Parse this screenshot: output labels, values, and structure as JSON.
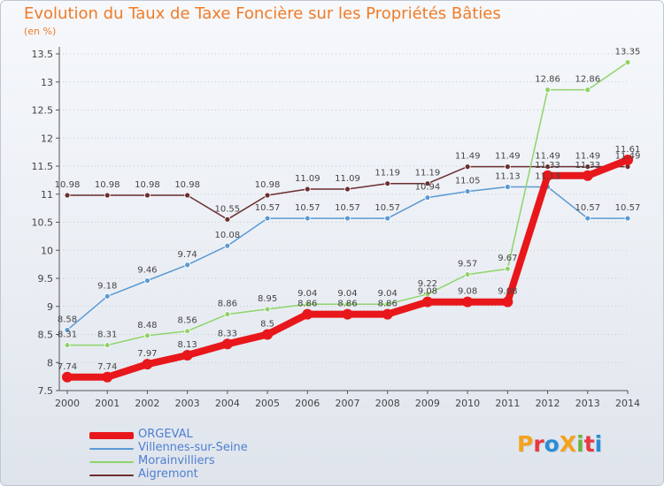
{
  "title": "Evolution du Taux de Taxe Foncière sur les Propriétés Bâties",
  "subtitle": "(en %)",
  "logo": {
    "text": "ProXiti",
    "letters": [
      "P",
      "r",
      "o",
      "X",
      "i",
      "t",
      "i"
    ],
    "colors": [
      "#f4a21f",
      "#e9383f",
      "#2a8ed6",
      "#f4a21f",
      "#6cb33f",
      "#e9383f",
      "#2a8ed6"
    ]
  },
  "chart_data": {
    "type": "line",
    "categories": [
      "2000",
      "2001",
      "2002",
      "2003",
      "2004",
      "2005",
      "2006",
      "2007",
      "2008",
      "2009",
      "2010",
      "2011",
      "2012",
      "2013",
      "2014"
    ],
    "ylim": [
      7.5,
      13.5
    ],
    "yticks": [
      "7.5",
      "8",
      "8.5",
      "9",
      "9.5",
      "10",
      "10.5",
      "11",
      "11.5",
      "12",
      "12.5",
      "13",
      "13.5"
    ],
    "xlabel": "",
    "ylabel": "",
    "grid": "horizontal-dotted",
    "legend_position": "bottom-left",
    "series": [
      {
        "name": "Aigremont",
        "color": "#6b2e2e",
        "width": 1.5,
        "values": [
          10.98,
          10.98,
          10.98,
          10.98,
          10.55,
          10.98,
          11.09,
          11.09,
          11.19,
          11.19,
          11.49,
          11.49,
          11.49,
          11.49,
          11.49
        ],
        "labels": [
          "10.98",
          "10.98",
          "10.98",
          "10.98",
          "10.55",
          "10.98",
          "11.09",
          "11.09",
          "11.19",
          "11.19",
          "11.49",
          "11.49",
          "11.49",
          "11.49",
          "11.49"
        ]
      },
      {
        "name": "Villennes-sur-Seine",
        "color": "#5a9ad4",
        "width": 1.5,
        "values": [
          8.58,
          9.18,
          9.46,
          9.74,
          10.08,
          10.57,
          10.57,
          10.57,
          10.57,
          10.94,
          11.05,
          11.13,
          11.13,
          10.57,
          10.57
        ],
        "labels": [
          "8.58",
          "9.18",
          "9.46",
          "9.74",
          "10.08",
          "10.57",
          "10.57",
          "10.57",
          "10.57",
          "10.94",
          "11.05",
          "11.13",
          "11.13",
          "10.57",
          "10.57"
        ]
      },
      {
        "name": "Morainvilliers",
        "color": "#8fd46a",
        "width": 1.5,
        "values": [
          8.31,
          8.31,
          8.48,
          8.56,
          8.86,
          8.95,
          9.04,
          9.04,
          9.04,
          9.22,
          9.57,
          9.67,
          12.86,
          12.86,
          13.35
        ],
        "labels": [
          "8.31",
          "8.31",
          "8.48",
          "8.56",
          "8.86",
          "8.95",
          "9.04",
          "9.04",
          "9.04",
          "9.22",
          "9.57",
          "9.67",
          "12.86",
          "12.86",
          "13.35"
        ]
      },
      {
        "name": "ORGEVAL",
        "color": "#e8171b",
        "width": 8,
        "values": [
          7.74,
          7.74,
          7.97,
          8.13,
          8.33,
          8.5,
          8.86,
          8.86,
          8.86,
          9.08,
          9.08,
          9.08,
          11.33,
          11.33,
          11.61
        ],
        "labels": [
          "7.74",
          "7.74",
          "7.97",
          "8.13",
          "8.33",
          "8.5",
          "8.86",
          "8.86",
          "8.86",
          "9.08",
          "9.08",
          "9.08",
          "11.33",
          "11.33",
          "11.61"
        ]
      }
    ],
    "legend": [
      {
        "name": "ORGEVAL",
        "color": "#e8171b",
        "label_color": "#4f7fd0"
      },
      {
        "name": "Villennes-sur-Seine",
        "color": "#5a9ad4",
        "label_color": "#4f7fd0"
      },
      {
        "name": "Morainvilliers",
        "color": "#8fd46a",
        "label_color": "#4f7fd0"
      },
      {
        "name": "Aigremont",
        "color": "#6b2e2e",
        "label_color": "#4f7fd0"
      }
    ]
  }
}
